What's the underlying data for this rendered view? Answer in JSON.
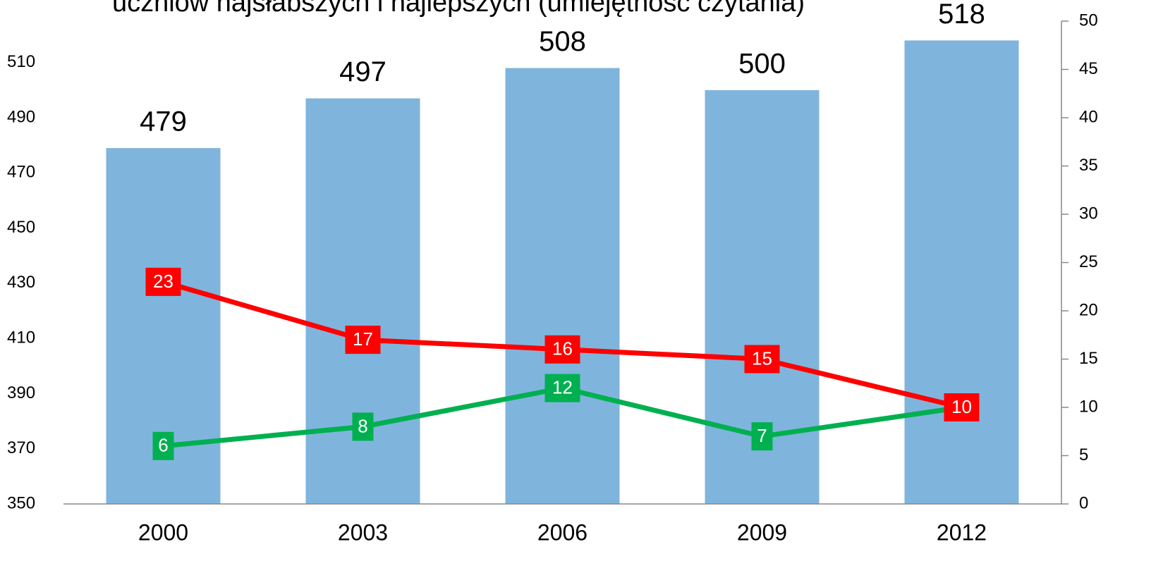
{
  "chart_data": {
    "type": "bar",
    "title": "uczniów najsłabszych i najlepszych (umiejętność czytania)",
    "categories": [
      "2000",
      "2003",
      "2006",
      "2009",
      "2012"
    ],
    "series": [
      {
        "type": "bar",
        "color": "#7fb5dd",
        "values": [
          479,
          497,
          508,
          500,
          518
        ]
      },
      {
        "type": "line",
        "axis": "y2",
        "color": "#00b050",
        "values": [
          6,
          8,
          12,
          7,
          10
        ]
      },
      {
        "type": "line",
        "axis": "y2",
        "color": "#ff0000",
        "values": [
          23,
          17,
          16,
          15,
          10
        ]
      }
    ],
    "ylim": [
      350,
      525
    ],
    "yticks": [
      350,
      370,
      390,
      410,
      430,
      450,
      470,
      490,
      510
    ],
    "y2lim": [
      0,
      50
    ],
    "y2ticks": [
      0,
      5,
      10,
      15,
      20,
      25,
      30,
      35,
      40,
      45,
      50
    ],
    "grid": false
  }
}
